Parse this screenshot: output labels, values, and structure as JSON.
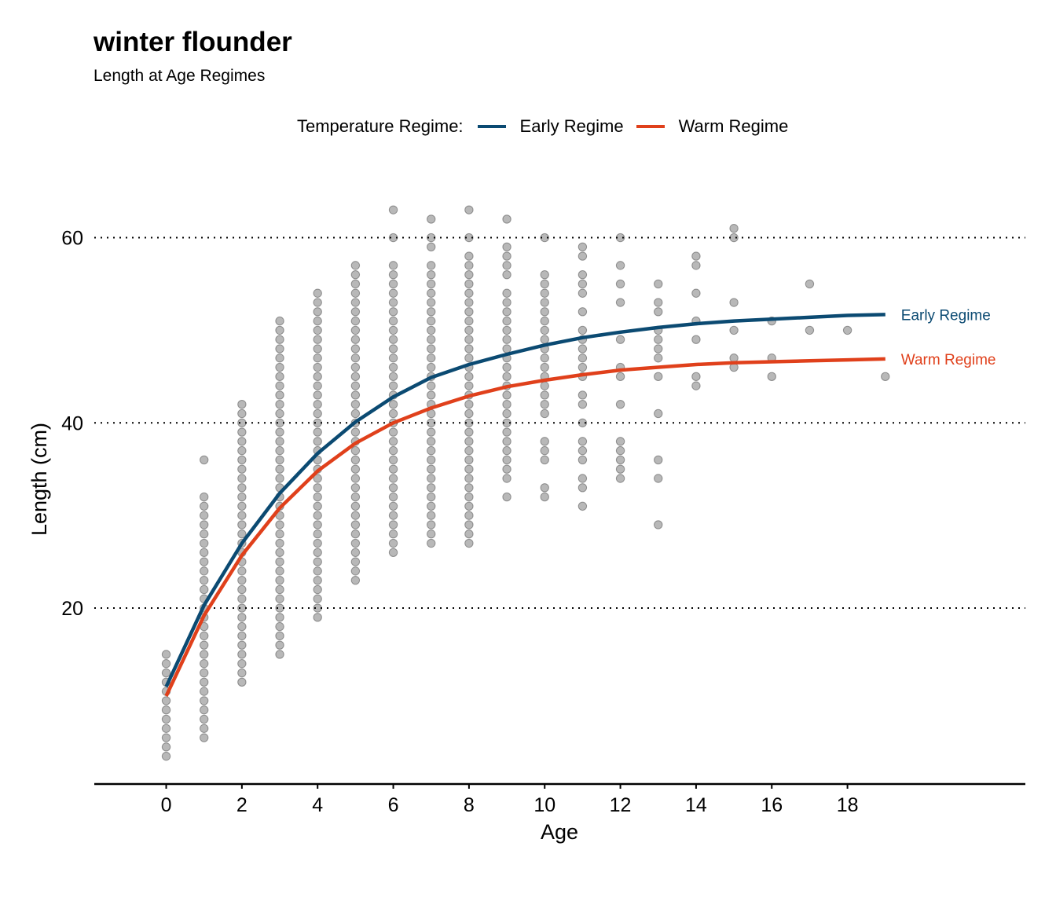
{
  "title": "winter flounder",
  "subtitle": "Length at Age Regimes",
  "legend": {
    "title": "Temperature Regime:",
    "items": [
      {
        "label": "Early Regime",
        "color": "#0b4a72"
      },
      {
        "label": "Warm Regime",
        "color": "#e0401b"
      }
    ]
  },
  "chart_data": {
    "type": "scatter",
    "title": "winter flounder",
    "subtitle": "Length at Age Regimes",
    "xlabel": "Age",
    "ylabel": "Length (cm)",
    "xlim": [
      -1.9,
      22.7
    ],
    "ylim": [
      1,
      67
    ],
    "x_ticks": [
      0,
      2,
      4,
      6,
      8,
      10,
      12,
      14,
      16,
      18
    ],
    "y_ticks": [
      20,
      40,
      60
    ],
    "grid": "horizontal dotted",
    "legend_position": "top",
    "point_color": "#000000",
    "observations": [
      {
        "age": 0,
        "lengths": [
          4,
          5,
          6,
          7,
          8,
          9,
          10,
          11,
          12,
          13,
          14,
          15
        ]
      },
      {
        "age": 1,
        "lengths": [
          6,
          7,
          8,
          9,
          10,
          11,
          12,
          13,
          14,
          15,
          16,
          17,
          18,
          19,
          20,
          21,
          22,
          23,
          24,
          25,
          26,
          27,
          28,
          29,
          30,
          31,
          32,
          36
        ]
      },
      {
        "age": 2,
        "lengths": [
          12,
          13,
          14,
          15,
          16,
          17,
          18,
          19,
          20,
          21,
          22,
          23,
          24,
          25,
          26,
          27,
          28,
          29,
          30,
          31,
          32,
          33,
          34,
          35,
          36,
          37,
          38,
          39,
          40,
          41,
          42
        ]
      },
      {
        "age": 3,
        "lengths": [
          15,
          16,
          17,
          18,
          19,
          20,
          21,
          22,
          23,
          24,
          25,
          26,
          27,
          28,
          29,
          30,
          31,
          32,
          33,
          34,
          35,
          36,
          37,
          38,
          39,
          40,
          41,
          42,
          43,
          44,
          45,
          46,
          47,
          48,
          49,
          50,
          51
        ]
      },
      {
        "age": 4,
        "lengths": [
          19,
          20,
          21,
          22,
          23,
          24,
          25,
          26,
          27,
          28,
          29,
          30,
          31,
          32,
          33,
          34,
          35,
          36,
          37,
          38,
          39,
          40,
          41,
          42,
          43,
          44,
          45,
          46,
          47,
          48,
          49,
          50,
          51,
          52,
          53,
          54
        ]
      },
      {
        "age": 5,
        "lengths": [
          23,
          24,
          25,
          26,
          27,
          28,
          29,
          30,
          31,
          32,
          33,
          34,
          35,
          36,
          37,
          38,
          39,
          40,
          41,
          42,
          43,
          44,
          45,
          46,
          47,
          48,
          49,
          50,
          51,
          52,
          53,
          54,
          55,
          56,
          57
        ]
      },
      {
        "age": 6,
        "lengths": [
          26,
          27,
          28,
          29,
          30,
          31,
          32,
          33,
          34,
          35,
          36,
          37,
          38,
          39,
          40,
          41,
          42,
          43,
          44,
          45,
          46,
          47,
          48,
          49,
          50,
          51,
          52,
          53,
          54,
          55,
          56,
          57,
          60,
          63
        ]
      },
      {
        "age": 7,
        "lengths": [
          27,
          28,
          29,
          30,
          31,
          32,
          33,
          34,
          35,
          36,
          37,
          38,
          39,
          40,
          41,
          42,
          43,
          44,
          45,
          46,
          47,
          48,
          49,
          50,
          51,
          52,
          53,
          54,
          55,
          56,
          57,
          59,
          60,
          62
        ]
      },
      {
        "age": 8,
        "lengths": [
          27,
          28,
          29,
          30,
          31,
          32,
          33,
          34,
          35,
          36,
          37,
          38,
          39,
          40,
          41,
          42,
          43,
          44,
          45,
          46,
          47,
          48,
          49,
          50,
          51,
          52,
          53,
          54,
          55,
          56,
          57,
          58,
          60,
          63
        ]
      },
      {
        "age": 9,
        "lengths": [
          32,
          34,
          35,
          36,
          37,
          38,
          39,
          40,
          41,
          42,
          43,
          44,
          45,
          46,
          47,
          48,
          49,
          50,
          51,
          52,
          53,
          54,
          56,
          57,
          58,
          59,
          62
        ]
      },
      {
        "age": 10,
        "lengths": [
          32,
          33,
          36,
          37,
          38,
          41,
          42,
          43,
          44,
          45,
          46,
          47,
          48,
          49,
          50,
          51,
          52,
          53,
          54,
          55,
          56,
          60
        ]
      },
      {
        "age": 11,
        "lengths": [
          31,
          33,
          34,
          36,
          37,
          38,
          40,
          42,
          43,
          45,
          46,
          47,
          48,
          49,
          50,
          52,
          54,
          55,
          56,
          58,
          59
        ]
      },
      {
        "age": 12,
        "lengths": [
          34,
          35,
          36,
          37,
          38,
          42,
          45,
          46,
          49,
          53,
          55,
          57,
          60
        ]
      },
      {
        "age": 13,
        "lengths": [
          29,
          34,
          36,
          41,
          45,
          47,
          48,
          49,
          50,
          52,
          53,
          55
        ]
      },
      {
        "age": 14,
        "lengths": [
          44,
          45,
          49,
          51,
          54,
          57,
          58
        ]
      },
      {
        "age": 15,
        "lengths": [
          46,
          47,
          50,
          53,
          60,
          61
        ]
      },
      {
        "age": 16,
        "lengths": [
          45,
          47,
          51
        ]
      },
      {
        "age": 17,
        "lengths": [
          50,
          55
        ]
      },
      {
        "age": 18,
        "lengths": [
          50
        ]
      },
      {
        "age": 19,
        "lengths": [
          45
        ]
      }
    ],
    "series": [
      {
        "name": "Early Regime",
        "label": "Early Regime",
        "color": "#0b4a72",
        "model": "von Bertalanffy",
        "x": [
          0,
          1,
          2,
          3,
          4,
          5,
          6,
          7,
          8,
          9,
          10,
          11,
          12,
          13,
          14,
          15,
          16,
          17,
          18,
          19
        ],
        "values": [
          11.5,
          20.3,
          27.0,
          32.4,
          36.7,
          40.1,
          42.8,
          44.9,
          46.3,
          47.4,
          48.4,
          49.2,
          49.8,
          50.3,
          50.7,
          51.0,
          51.2,
          51.4,
          51.6,
          51.7
        ]
      },
      {
        "name": "Warm Regime",
        "label": "Warm Regime",
        "color": "#e0401b",
        "model": "von Bertalanffy",
        "x": [
          0,
          1,
          2,
          3,
          4,
          5,
          6,
          7,
          8,
          9,
          10,
          11,
          12,
          13,
          14,
          15,
          16,
          17,
          18,
          19
        ],
        "values": [
          10.5,
          19.2,
          25.7,
          30.8,
          34.8,
          37.8,
          40.0,
          41.6,
          42.9,
          43.9,
          44.6,
          45.2,
          45.7,
          46.0,
          46.3,
          46.5,
          46.6,
          46.7,
          46.8,
          46.9
        ]
      }
    ]
  }
}
